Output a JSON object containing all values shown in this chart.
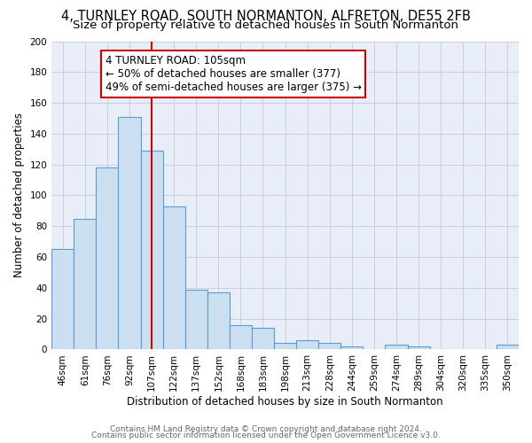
{
  "title": "4, TURNLEY ROAD, SOUTH NORMANTON, ALFRETON, DE55 2FB",
  "subtitle": "Size of property relative to detached houses in South Normanton",
  "xlabel": "Distribution of detached houses by size in South Normanton",
  "ylabel": "Number of detached properties",
  "categories": [
    "46sqm",
    "61sqm",
    "76sqm",
    "92sqm",
    "107sqm",
    "122sqm",
    "137sqm",
    "152sqm",
    "168sqm",
    "183sqm",
    "198sqm",
    "213sqm",
    "228sqm",
    "244sqm",
    "259sqm",
    "274sqm",
    "289sqm",
    "304sqm",
    "320sqm",
    "335sqm",
    "350sqm"
  ],
  "values": [
    65,
    85,
    118,
    151,
    129,
    93,
    39,
    37,
    16,
    14,
    4,
    6,
    4,
    2,
    0,
    3,
    2,
    0,
    0,
    0,
    3
  ],
  "bar_color": "#ccdff0",
  "bar_edge_color": "#5b9bd5",
  "vline_x_index": 4,
  "vline_color": "#cc0000",
  "annotation_line1": "4 TURNLEY ROAD: 105sqm",
  "annotation_line2": "← 50% of detached houses are smaller (377)",
  "annotation_line3": "49% of semi-detached houses are larger (375) →",
  "annotation_box_color": "#ffffff",
  "annotation_box_edge_color": "#cc0000",
  "footer_line1": "Contains HM Land Registry data © Crown copyright and database right 2024.",
  "footer_line2": "Contains public sector information licensed under the Open Government Licence v3.0.",
  "ylim": [
    0,
    200
  ],
  "yticks": [
    0,
    20,
    40,
    60,
    80,
    100,
    120,
    140,
    160,
    180,
    200
  ],
  "background_color": "#ffffff",
  "plot_bg_color": "#e8eef8",
  "grid_color": "#c8c8d8",
  "title_fontsize": 10.5,
  "subtitle_fontsize": 9.5,
  "axis_label_fontsize": 8.5,
  "tick_fontsize": 7.5,
  "annotation_fontsize": 8.5,
  "footer_fontsize": 6.5
}
